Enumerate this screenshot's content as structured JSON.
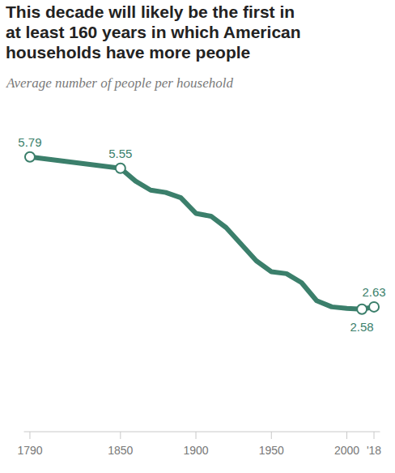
{
  "chart_data": {
    "type": "line",
    "title": "This decade will likely be the first in\nat least 160 years in which American\nhouseholds have more people",
    "subtitle": "Average number of people per household",
    "x": [
      1790,
      1850,
      1860,
      1870,
      1880,
      1890,
      1900,
      1910,
      1920,
      1930,
      1940,
      1950,
      1960,
      1970,
      1980,
      1990,
      2000,
      2010,
      2018
    ],
    "values": [
      5.79,
      5.55,
      5.28,
      5.09,
      5.04,
      4.93,
      4.6,
      4.54,
      4.3,
      3.95,
      3.6,
      3.37,
      3.33,
      3.14,
      2.76,
      2.63,
      2.6,
      2.58,
      2.63
    ],
    "value_labels": [
      "5.79",
      "5.55",
      null,
      null,
      null,
      null,
      null,
      null,
      null,
      null,
      null,
      null,
      null,
      null,
      null,
      null,
      null,
      "2.58",
      "2.63"
    ],
    "color": "#3b7f6b",
    "marker": "circle",
    "xlim": [
      1786,
      2022
    ],
    "xticks": [
      1790,
      1850,
      1900,
      1950,
      2000,
      {
        "value": 2018,
        "label": "'18"
      }
    ],
    "ylim": [
      0,
      6
    ],
    "tick_labels": "x",
    "grid": false
  }
}
